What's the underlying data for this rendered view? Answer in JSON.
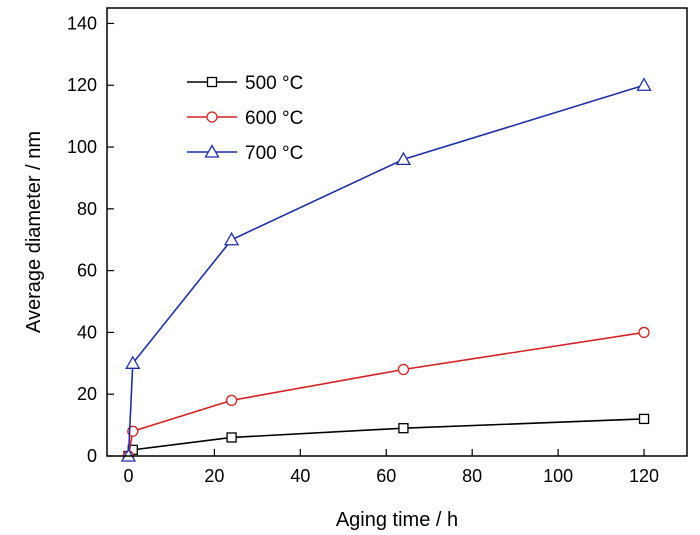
{
  "chart_data": {
    "type": "line",
    "xlabel": "Aging time / h",
    "ylabel": "Average diameter / nm",
    "xlim": [
      -5,
      130
    ],
    "ylim": [
      0,
      145
    ],
    "xticks": [
      0,
      20,
      40,
      60,
      80,
      100,
      120
    ],
    "yticks": [
      0,
      20,
      40,
      60,
      80,
      100,
      120,
      140
    ],
    "grid": false,
    "legend_position": "top-left",
    "series": [
      {
        "name": "500 °C",
        "color": "#000000",
        "marker": "square",
        "x": [
          0,
          1,
          24,
          64,
          120
        ],
        "y": [
          0,
          2,
          6,
          9,
          12
        ]
      },
      {
        "name": "600 °C",
        "color": "#d42020",
        "marker": "circle",
        "x": [
          0,
          1,
          24,
          64,
          120
        ],
        "y": [
          0,
          8,
          18,
          28,
          40
        ]
      },
      {
        "name": "700 °C",
        "color": "#1c2fa8",
        "marker": "triangle",
        "x": [
          0,
          1,
          24,
          64,
          120
        ],
        "y": [
          0,
          30,
          70,
          96,
          120
        ]
      }
    ]
  }
}
